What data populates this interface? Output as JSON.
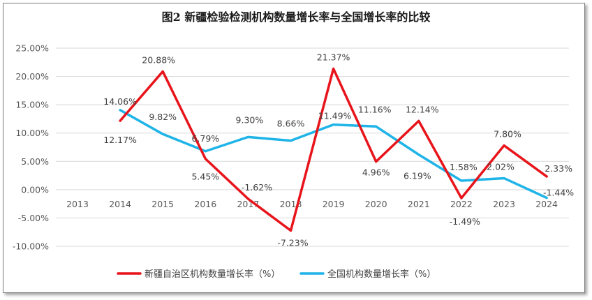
{
  "chart_data": {
    "type": "line",
    "title": "图2 新疆检验检测机构数量增长率与全国增长率的比较",
    "categories": [
      "2013",
      "2014",
      "2015",
      "2016",
      "2017",
      "2018",
      "2019",
      "2020",
      "2021",
      "2022",
      "2023",
      "2024"
    ],
    "ylim": [
      -10,
      25
    ],
    "ytick_values": [
      25,
      20,
      15,
      10,
      5,
      0,
      -5,
      -10
    ],
    "ytick_labels": [
      "25.00%",
      "20.00%",
      "15.00%",
      "10.00%",
      "5.00%",
      "0.00%",
      "-5.00%",
      "-10.00%"
    ],
    "grid": true,
    "legend_position": "bottom",
    "series": [
      {
        "name": "新疆自治区机构数量增长率（%）",
        "color": "#e8141b",
        "values": [
          null,
          12.17,
          20.88,
          5.45,
          -1.62,
          -7.23,
          21.37,
          4.96,
          12.14,
          -1.49,
          7.8,
          2.33
        ],
        "labels": [
          "",
          "12.17%",
          "20.88%",
          "5.45%",
          "-1.62%",
          "-7.23%",
          "21.37%",
          "4.96%",
          "12.14%",
          "-1.49%",
          "7.80%",
          "2.33%"
        ]
      },
      {
        "name": "全国机构数量增长率（%）",
        "color": "#1fb4e8",
        "values": [
          null,
          14.06,
          9.82,
          6.79,
          9.3,
          8.66,
          11.49,
          11.16,
          6.19,
          1.58,
          2.02,
          -1.44
        ],
        "labels": [
          "",
          "14.06%",
          "9.82%",
          "6.79%",
          "9.30%",
          "8.66%",
          "11.49%",
          "11.16%",
          "6.19%",
          "1.58%",
          "2.02%",
          "-1.44%"
        ]
      }
    ]
  }
}
